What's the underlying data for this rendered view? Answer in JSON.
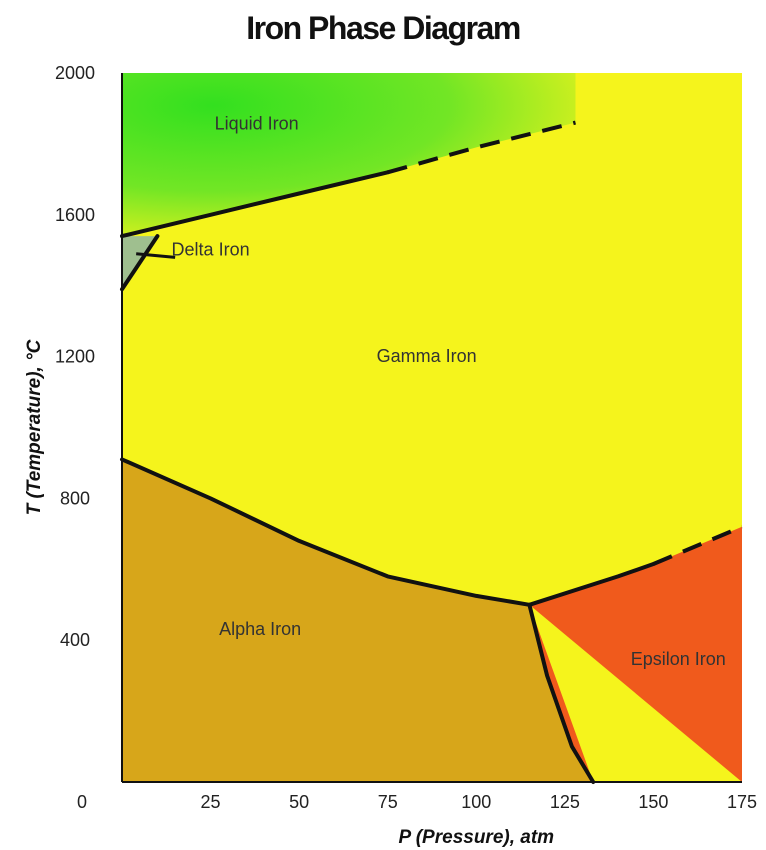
{
  "chart_data": {
    "type": "diagram",
    "title": "Iron Phase Diagram",
    "xlabel": "P (Pressure), atm",
    "ylabel": "T (Temperature), °C",
    "xlim": [
      0,
      175
    ],
    "ylim": [
      0,
      2000
    ],
    "x_ticks": [
      "0",
      "25",
      "50",
      "75",
      "100",
      "125",
      "150",
      "175"
    ],
    "y_ticks": [
      "2000",
      "1600",
      "1200",
      "800",
      "400"
    ],
    "regions": [
      {
        "name": "Liquid Iron",
        "color": "#3fe21f",
        "label_at": [
          38,
          1840
        ]
      },
      {
        "name": "Delta Iron",
        "color": "#9fbf8f",
        "label_at": [
          25,
          1485
        ]
      },
      {
        "name": "Gamma Iron",
        "color": "#f5f41c",
        "label_at": [
          86,
          1185
        ]
      },
      {
        "name": "Alpha Iron",
        "color": "#d7a61a",
        "label_at": [
          39,
          415
        ]
      },
      {
        "name": "Epsilon Iron",
        "color": "#f05a1c",
        "label_at": [
          157,
          330
        ]
      }
    ],
    "boundaries": [
      {
        "name": "liquid-solid",
        "style": "solid",
        "points": [
          [
            0,
            1540
          ],
          [
            25,
            1600
          ],
          [
            50,
            1660
          ],
          [
            75,
            1720
          ]
        ]
      },
      {
        "name": "liquid-solid-extrapolated",
        "style": "dashed",
        "points": [
          [
            75,
            1720
          ],
          [
            100,
            1790
          ],
          [
            128,
            1860
          ]
        ]
      },
      {
        "name": "delta-boundary",
        "style": "solid",
        "points": [
          [
            0,
            1390
          ],
          [
            4,
            1450
          ],
          [
            10,
            1540
          ]
        ]
      },
      {
        "name": "alpha-gamma",
        "style": "solid",
        "points": [
          [
            0,
            910
          ],
          [
            25,
            800
          ],
          [
            50,
            680
          ],
          [
            75,
            580
          ],
          [
            100,
            525
          ],
          [
            115,
            500
          ]
        ]
      },
      {
        "name": "gamma-epsilon",
        "style": "solid",
        "points": [
          [
            115,
            500
          ],
          [
            140,
            580
          ],
          [
            150,
            615
          ]
        ]
      },
      {
        "name": "gamma-epsilon-extrapolated",
        "style": "dashed",
        "points": [
          [
            150,
            615
          ],
          [
            175,
            720
          ]
        ]
      },
      {
        "name": "alpha-epsilon",
        "style": "solid",
        "points": [
          [
            115,
            500
          ],
          [
            120,
            300
          ],
          [
            127,
            100
          ],
          [
            133,
            0
          ]
        ]
      }
    ]
  }
}
